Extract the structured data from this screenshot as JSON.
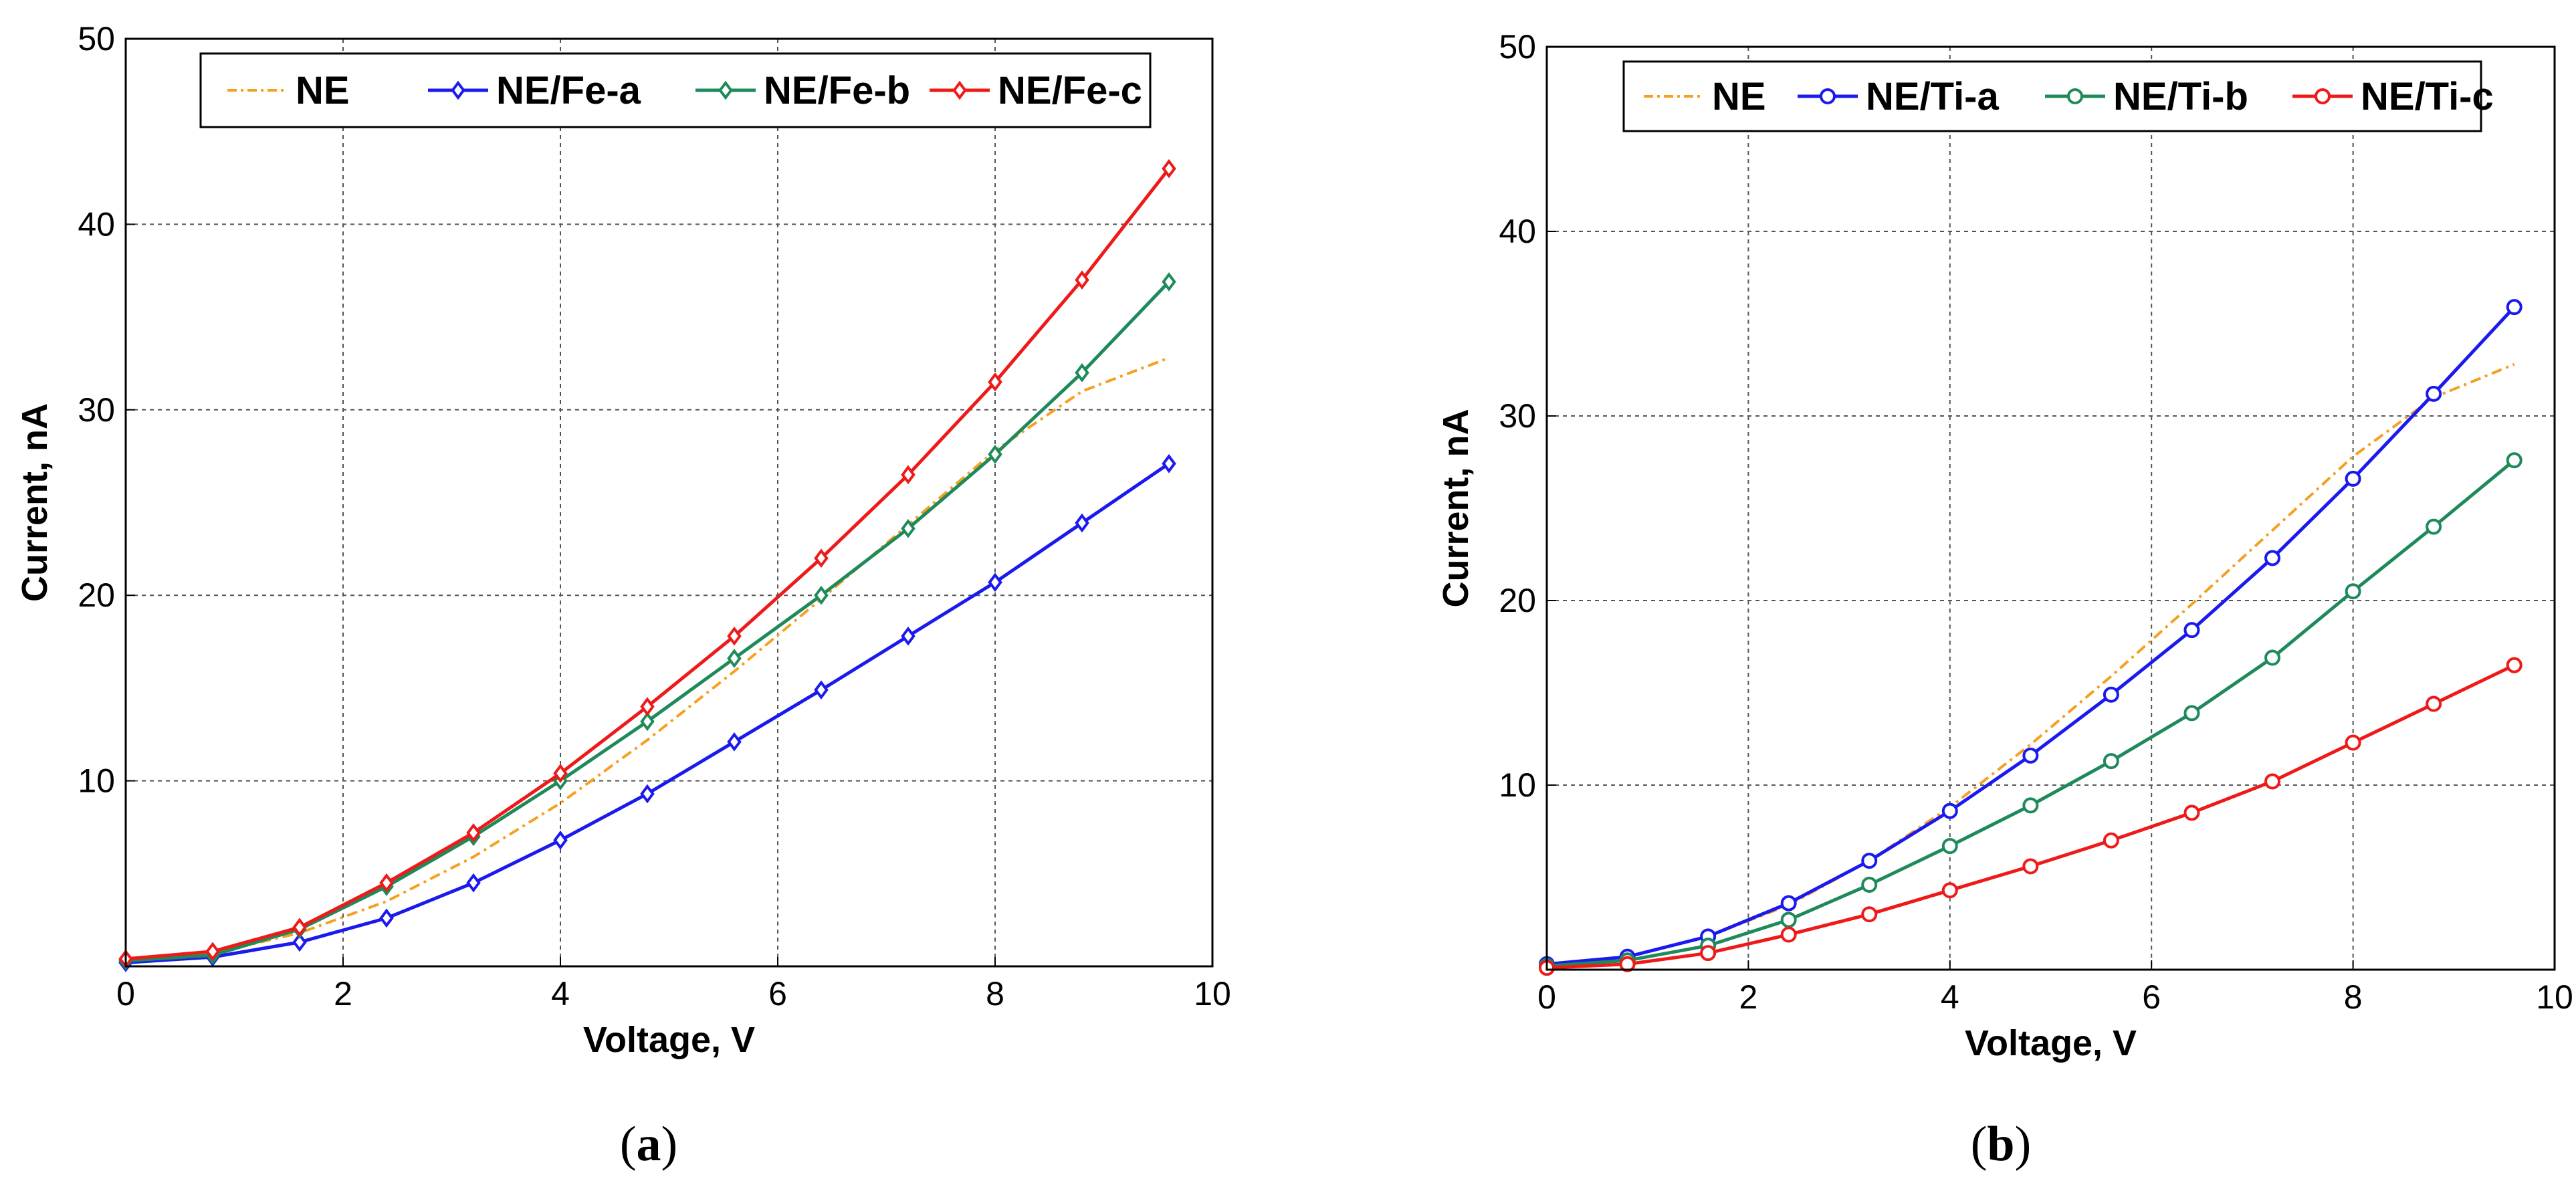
{
  "chart_data": [
    {
      "type": "line",
      "panel": "a",
      "title": "",
      "xlabel": "Voltage, V",
      "ylabel": "Current, nA",
      "xlim": [
        0,
        10
      ],
      "ylim": [
        0,
        50
      ],
      "xticks": [
        "0",
        "2",
        "4",
        "6",
        "8",
        "10"
      ],
      "yticks": [
        "10",
        "20",
        "30",
        "40",
        "50"
      ],
      "grid": true,
      "legend_position": "top",
      "series": [
        {
          "name": "NE",
          "color": "#f5a020",
          "marker": "none",
          "dash": "dashdot",
          "x": [
            0,
            0.8,
            1.6,
            2.4,
            3.2,
            4.0,
            4.8,
            5.6,
            6.4,
            7.2,
            8.0,
            8.8,
            9.6
          ],
          "y": [
            0.2,
            0.7,
            1.8,
            3.5,
            5.9,
            8.8,
            12.2,
            15.9,
            19.8,
            23.8,
            27.8,
            31.0,
            32.8
          ]
        },
        {
          "name": "NE/Fe-a",
          "color": "#1a1aee",
          "marker": "diamond",
          "dash": "solid",
          "x": [
            0,
            0.8,
            1.6,
            2.4,
            3.2,
            4.0,
            4.8,
            5.6,
            6.4,
            7.2,
            8.0,
            8.8,
            9.6
          ],
          "y": [
            0.2,
            0.5,
            1.3,
            2.6,
            4.5,
            6.8,
            9.3,
            12.1,
            14.9,
            17.8,
            20.7,
            23.9,
            27.1
          ]
        },
        {
          "name": "NE/Fe-b",
          "color": "#1e8a5a",
          "marker": "diamond",
          "dash": "solid",
          "x": [
            0,
            0.8,
            1.6,
            2.4,
            3.2,
            4.0,
            4.8,
            5.6,
            6.4,
            7.2,
            8.0,
            8.8,
            9.6
          ],
          "y": [
            0.3,
            0.6,
            2.0,
            4.3,
            7.0,
            10.0,
            13.2,
            16.6,
            20.0,
            23.6,
            27.6,
            32.0,
            36.9
          ]
        },
        {
          "name": "NE/Fe-c",
          "color": "#ee1a1a",
          "marker": "diamond",
          "dash": "solid",
          "x": [
            0,
            0.8,
            1.6,
            2.4,
            3.2,
            4.0,
            4.8,
            5.6,
            6.4,
            7.2,
            8.0,
            8.8,
            9.6
          ],
          "y": [
            0.4,
            0.8,
            2.1,
            4.5,
            7.2,
            10.4,
            14.0,
            17.8,
            22.0,
            26.5,
            31.5,
            37.0,
            43.0
          ]
        }
      ]
    },
    {
      "type": "line",
      "panel": "b",
      "title": "",
      "xlabel": "Voltage, V",
      "ylabel": "Current, nA",
      "xlim": [
        0,
        10
      ],
      "ylim": [
        0,
        50
      ],
      "xticks": [
        "0",
        "2",
        "4",
        "6",
        "8",
        "10"
      ],
      "yticks": [
        "10",
        "20",
        "30",
        "40",
        "50"
      ],
      "grid": true,
      "legend_position": "top",
      "series": [
        {
          "name": "NE",
          "color": "#f5a020",
          "marker": "none",
          "dash": "dashdot",
          "x": [
            0,
            0.8,
            1.6,
            2.4,
            3.2,
            4.0,
            4.8,
            5.6,
            6.4,
            7.2,
            8.0,
            8.8,
            9.6
          ],
          "y": [
            0.2,
            0.7,
            1.8,
            3.5,
            5.9,
            8.8,
            12.2,
            15.9,
            19.8,
            23.8,
            27.8,
            31.0,
            32.8
          ]
        },
        {
          "name": "NE/Ti-a",
          "color": "#1a1aee",
          "marker": "circle",
          "dash": "solid",
          "x": [
            0,
            0.8,
            1.6,
            2.4,
            3.2,
            4.0,
            4.8,
            5.6,
            6.4,
            7.2,
            8.0,
            8.8,
            9.6
          ],
          "y": [
            0.3,
            0.7,
            1.8,
            3.6,
            5.9,
            8.6,
            11.6,
            14.9,
            18.4,
            22.3,
            26.6,
            31.2,
            35.9
          ]
        },
        {
          "name": "NE/Ti-b",
          "color": "#1e8a5a",
          "marker": "circle",
          "dash": "solid",
          "x": [
            0,
            0.8,
            1.6,
            2.4,
            3.2,
            4.0,
            4.8,
            5.6,
            6.4,
            7.2,
            8.0,
            8.8,
            9.6
          ],
          "y": [
            0.2,
            0.5,
            1.3,
            2.7,
            4.6,
            6.7,
            8.9,
            11.3,
            13.9,
            16.9,
            20.5,
            24.0,
            27.6
          ]
        },
        {
          "name": "NE/Ti-c",
          "color": "#ee1a1a",
          "marker": "circle",
          "dash": "solid",
          "x": [
            0,
            0.8,
            1.6,
            2.4,
            3.2,
            4.0,
            4.8,
            5.6,
            6.4,
            7.2,
            8.0,
            8.8,
            9.6
          ],
          "y": [
            0.1,
            0.3,
            0.9,
            1.9,
            3.0,
            4.3,
            5.6,
            7.0,
            8.5,
            10.2,
            12.3,
            14.4,
            16.5
          ]
        }
      ]
    }
  ],
  "captions": [
    {
      "open": "(",
      "letter": "a",
      "close": ")"
    },
    {
      "open": "(",
      "letter": "b",
      "close": ")"
    }
  ]
}
